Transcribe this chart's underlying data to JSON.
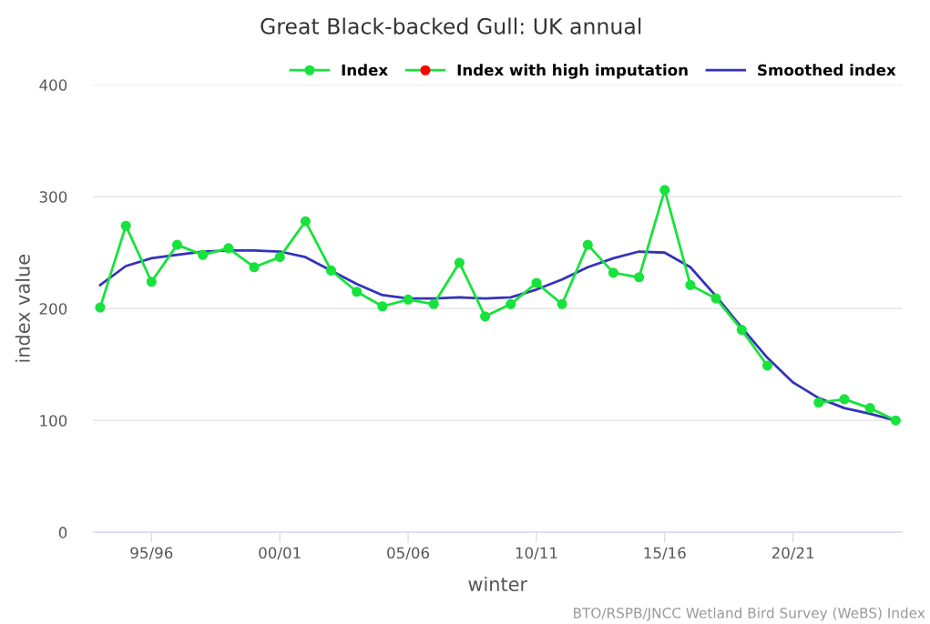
{
  "chart_data": {
    "type": "line",
    "title": "Great Black-backed Gull: UK annual",
    "xlabel": "winter",
    "ylabel": "index value",
    "categories": [
      null,
      null,
      "95/96",
      null,
      null,
      null,
      null,
      "00/01",
      null,
      null,
      null,
      null,
      "05/06",
      null,
      null,
      null,
      null,
      "10/11",
      null,
      null,
      null,
      null,
      "15/16",
      null,
      null,
      null,
      null,
      "20/21",
      null,
      null,
      null,
      null
    ],
    "series": [
      {
        "name": "Index",
        "color": "#17e33c",
        "marker": "circle",
        "values": [
          201,
          274,
          224,
          257,
          248,
          254,
          237,
          246,
          278,
          234,
          215,
          202,
          208,
          204,
          241,
          193,
          204,
          223,
          204,
          257,
          232,
          228,
          306,
          221,
          209,
          181,
          149,
          null,
          116,
          119,
          111,
          100
        ]
      },
      {
        "name": "Index with high imputation",
        "color": "#ff0000",
        "marker": "circle",
        "values": [
          null,
          null,
          null,
          null,
          null,
          null,
          null,
          null,
          null,
          null,
          null,
          null,
          null,
          null,
          null,
          null,
          null,
          null,
          null,
          null,
          null,
          null,
          null,
          null,
          null,
          null,
          null,
          null,
          null,
          null,
          null,
          null
        ]
      },
      {
        "name": "Smoothed index",
        "color": "#3333bb",
        "marker": "none",
        "values": [
          221,
          238,
          245,
          248,
          251,
          252,
          252,
          251,
          246,
          234,
          222,
          212,
          209,
          209,
          210,
          209,
          210,
          217,
          226,
          237,
          245,
          251,
          250,
          237,
          211,
          183,
          156,
          134,
          120,
          111,
          106,
          100
        ]
      }
    ],
    "ylim": [
      0,
      400
    ],
    "yticks": [
      0,
      100,
      200,
      300,
      400
    ],
    "grid": "y",
    "legend": "top right",
    "line_style": "solid",
    "annotations": [
      "BTO/RSPB/JNCC Wetland Bird Survey (WeBS) Index"
    ]
  }
}
